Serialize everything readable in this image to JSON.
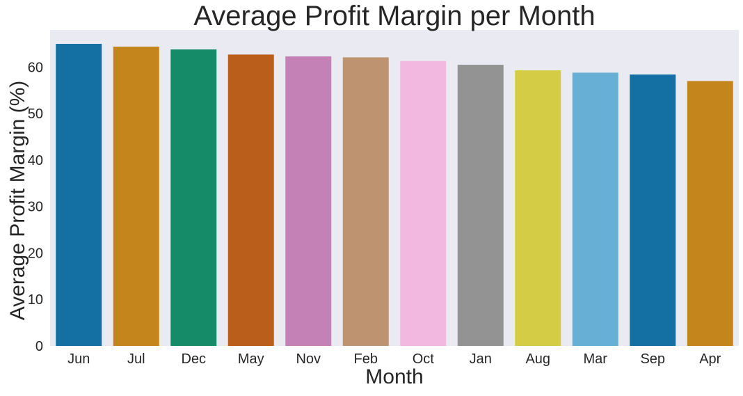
{
  "chart_data": {
    "type": "bar",
    "title": "Average Profit Margin per Month",
    "xlabel": "Month",
    "ylabel": "Average Profit Margin (%)",
    "categories": [
      "Jun",
      "Jul",
      "Dec",
      "May",
      "Nov",
      "Feb",
      "Oct",
      "Jan",
      "Aug",
      "Mar",
      "Sep",
      "Apr"
    ],
    "values": [
      65.0,
      64.4,
      63.8,
      62.7,
      62.3,
      62.1,
      61.3,
      60.5,
      59.3,
      58.8,
      58.4,
      57.0
    ],
    "colors": [
      "#1470a2",
      "#c4861c",
      "#168b68",
      "#ba5f1b",
      "#c381b6",
      "#bd9370",
      "#f2b8e0",
      "#939393",
      "#d5cc45",
      "#68afd6",
      "#1470a2",
      "#c4861c"
    ],
    "ylim": [
      0,
      68
    ],
    "yticks": [
      0,
      10,
      20,
      30,
      40,
      50,
      60
    ],
    "grid": false,
    "background": "#eaeaf2"
  }
}
